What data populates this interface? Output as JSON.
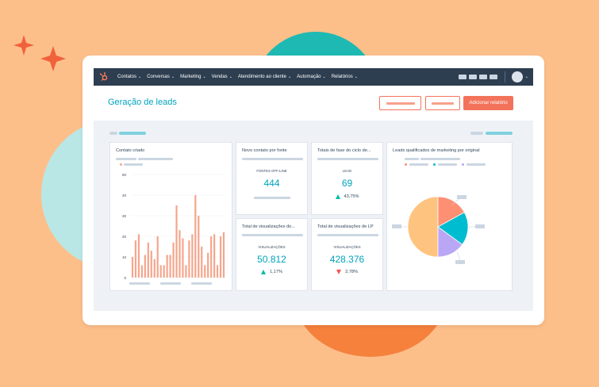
{
  "nav": {
    "items": [
      {
        "label": "Contatos"
      },
      {
        "label": "Conversas"
      },
      {
        "label": "Marketing"
      },
      {
        "label": "Vendas"
      },
      {
        "label": "Atendimento ao cliente"
      },
      {
        "label": "Automação"
      },
      {
        "label": "Relatórios"
      }
    ]
  },
  "page": {
    "title": "Geração de leads",
    "add_report_label": "Adicionar relatório"
  },
  "cards": {
    "contacts_created": {
      "title": "Contato criado"
    },
    "new_contacts_by_source": {
      "title": "Novo contato por fonte",
      "label": "FONTES OFF-LINE",
      "value": "444"
    },
    "lifecycle_totals": {
      "title": "Totais de fase do ciclo de...",
      "label": "LEAD",
      "value": "69",
      "change": "43,75%",
      "direction": "up"
    },
    "total_views_1": {
      "title": "Total de visualizações do...",
      "label": "VISUALIZAÇÕES",
      "value": "50.812",
      "change": "1,17%",
      "direction": "up"
    },
    "total_views_lp": {
      "title": "Total de visualizações de LP",
      "label": "VISUALIZAÇÕES",
      "value": "428.376",
      "change": "2,78%",
      "direction": "down"
    },
    "mql_by_source": {
      "title": "Leads qualificados de marketing por original"
    }
  },
  "chart_data": [
    {
      "type": "bar",
      "title": "Contato criado",
      "ylim": [
        0,
        50
      ],
      "yticks": [
        "50",
        "40",
        "30",
        "20",
        "10",
        "0"
      ],
      "grid": true,
      "values": [
        10,
        18,
        21,
        6,
        11,
        17,
        13,
        9,
        20,
        6,
        6,
        11,
        11,
        17,
        35,
        23,
        19,
        6,
        18,
        21,
        40,
        30,
        15,
        6,
        12,
        20,
        21,
        6,
        20,
        22
      ],
      "color": "#f5a58c"
    },
    {
      "type": "pie",
      "values": [
        17,
        18,
        15,
        50
      ],
      "colors": [
        "#ff8f73",
        "#00bcd0",
        "#b9a7f5",
        "#fec47f"
      ]
    }
  ],
  "colors": {
    "navbar": "#2d3e50",
    "accent_teal": "#00a4bd",
    "accent_orange": "#f2735a",
    "positive": "#00bda5",
    "negative": "#f2545b"
  },
  "icons": {
    "logo": "hubspot-sprocket-icon",
    "sparkle": "sparkle-icon"
  }
}
